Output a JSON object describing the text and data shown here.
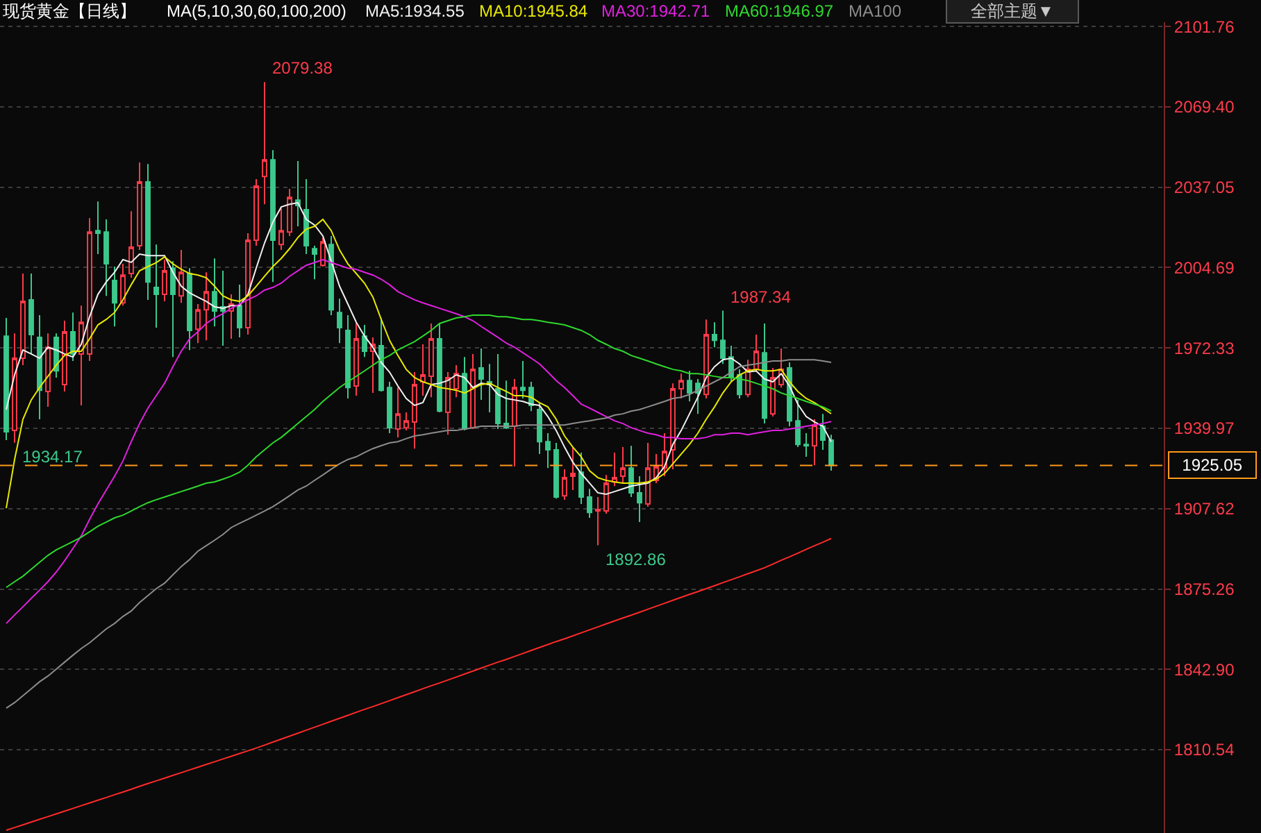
{
  "chart_data": {
    "type": "candlestick",
    "title": "现货黄金【日线】",
    "legend_title": "MA(5,10,30,60,100,200)",
    "legend": "top",
    "grid": "y",
    "tick_labels": "y",
    "categories": [
      null,
      null,
      null,
      null,
      null,
      null,
      null,
      null,
      null,
      null,
      null,
      null,
      null,
      null,
      null,
      null,
      null,
      null,
      null,
      null,
      null,
      null,
      null,
      null,
      null,
      null,
      null,
      null,
      null,
      null,
      null,
      null,
      null,
      null,
      null,
      null,
      null,
      null,
      null,
      null,
      null,
      null,
      null,
      null,
      null,
      null,
      null,
      null,
      null,
      null,
      null,
      null,
      null,
      null,
      null,
      null,
      null,
      null,
      null,
      null,
      null,
      null,
      null,
      null,
      null,
      null,
      null,
      null,
      null,
      null,
      null,
      null,
      null,
      null,
      null,
      null,
      null,
      null,
      null,
      null,
      null,
      null,
      null,
      null,
      null,
      null,
      null,
      null,
      null,
      null,
      null,
      null,
      null,
      null,
      null,
      null,
      null,
      null,
      null,
      null
    ],
    "ohlc": [
      [
        1977.1,
        1984.4,
        1935.2,
        1938.6
      ],
      [
        1939.1,
        1978.2,
        1934.17,
        1968.2
      ],
      [
        1968.2,
        2002.3,
        1965.4,
        1991.1
      ],
      [
        1991.7,
        2002.3,
        1969.9,
        1977.7
      ],
      [
        1976.6,
        1985.5,
        1943.6,
        1955.3
      ],
      [
        1954.8,
        1978.2,
        1948.6,
        1972.6
      ],
      [
        1976.6,
        1978.2,
        1960.4,
        1963.1
      ],
      [
        1957.6,
        1983.3,
        1954.8,
        1978.8
      ],
      [
        1978.8,
        1986.6,
        1967.1,
        1969.9
      ],
      [
        1969.9,
        1989.4,
        1949.2,
        1982.7
      ],
      [
        1969.9,
        2024.6,
        1967.1,
        2019.0
      ],
      [
        2019.6,
        2031.3,
        2010.1,
        2018.5
      ],
      [
        2019.0,
        2024.1,
        1993.3,
        2006.2
      ],
      [
        1999.5,
        2005.1,
        1981.0,
        1990.5
      ],
      [
        1990.5,
        2006.2,
        1989.4,
        2001.7
      ],
      [
        2002.3,
        2027.4,
        2000.6,
        2012.9
      ],
      [
        2013.5,
        2047.0,
        2011.8,
        2039.2
      ],
      [
        2039.2,
        2046.4,
        1991.7,
        1998.9
      ],
      [
        1996.7,
        2014.0,
        1980.5,
        1993.9
      ],
      [
        1993.9,
        2007.9,
        1991.1,
        2003.4
      ],
      [
        2004.5,
        2007.3,
        1968.7,
        1993.9
      ],
      [
        1993.3,
        2011.8,
        1990.5,
        2002.8
      ],
      [
        2002.3,
        2004.5,
        1971.5,
        1979.4
      ],
      [
        1979.9,
        1990.0,
        1974.3,
        1987.7
      ],
      [
        1987.7,
        2002.8,
        1975.4,
        1995.0
      ],
      [
        1995.0,
        2008.4,
        1981.0,
        1987.2
      ],
      [
        1988.9,
        2003.4,
        1973.2,
        1987.2
      ],
      [
        1987.2,
        1993.9,
        1976.0,
        1990.0
      ],
      [
        1989.4,
        1997.8,
        1976.6,
        1980.5
      ],
      [
        1980.5,
        2018.5,
        1977.7,
        2015.7
      ],
      [
        2015.7,
        2040.3,
        2013.5,
        2037.5
      ],
      [
        2041.4,
        2079.38,
        2030.2,
        2048.1
      ],
      [
        2048.1,
        2052.0,
        1998.9,
        2015.7
      ],
      [
        2014.0,
        2028.5,
        2011.8,
        2019.6
      ],
      [
        2019.0,
        2036.4,
        2017.4,
        2033.0
      ],
      [
        2031.9,
        2047.6,
        2021.3,
        2029.7
      ],
      [
        2028.0,
        2040.3,
        2010.1,
        2013.5
      ],
      [
        2012.3,
        2013.5,
        2000.0,
        2010.1
      ],
      [
        2005.6,
        2016.8,
        2005.1,
        2015.1
      ],
      [
        2014.0,
        2017.4,
        1985.5,
        1987.7
      ],
      [
        1986.6,
        1992.2,
        1974.3,
        1980.5
      ],
      [
        1979.4,
        1985.5,
        1952.0,
        1956.4
      ],
      [
        1957.0,
        1982.7,
        1953.1,
        1976.0
      ],
      [
        1977.1,
        1981.6,
        1968.7,
        1971.0
      ],
      [
        1971.0,
        1976.6,
        1954.2,
        1973.8
      ],
      [
        1973.2,
        1984.4,
        1954.8,
        1955.3
      ],
      [
        1956.4,
        1958.7,
        1938.0,
        1940.2
      ],
      [
        1939.7,
        1956.4,
        1936.3,
        1945.8
      ],
      [
        1940.2,
        1946.4,
        1939.1,
        1943.0
      ],
      [
        1942.5,
        1962.6,
        1931.8,
        1957.6
      ],
      [
        1958.7,
        1973.8,
        1953.1,
        1961.5
      ],
      [
        1960.9,
        1982.2,
        1952.5,
        1976.0
      ],
      [
        1976.0,
        1982.2,
        1946.4,
        1946.9
      ],
      [
        1946.4,
        1962.6,
        1937.4,
        1960.4
      ],
      [
        1955.9,
        1965.4,
        1952.5,
        1962.0
      ],
      [
        1962.0,
        1968.7,
        1939.1,
        1939.7
      ],
      [
        1940.2,
        1969.9,
        1939.7,
        1963.7
      ],
      [
        1964.3,
        1972.1,
        1951.4,
        1959.8
      ],
      [
        1958.7,
        1965.9,
        1946.4,
        1957.6
      ],
      [
        1955.9,
        1969.9,
        1939.7,
        1941.9
      ],
      [
        1941.9,
        1959.2,
        1939.7,
        1940.2
      ],
      [
        1940.8,
        1959.8,
        1924.6,
        1956.4
      ],
      [
        1956.4,
        1967.1,
        1952.0,
        1955.3
      ],
      [
        1956.4,
        1958.7,
        1946.9,
        1949.2
      ],
      [
        1947.5,
        1950.3,
        1929.6,
        1934.6
      ],
      [
        1934.6,
        1938.0,
        1924.0,
        1931.3
      ],
      [
        1931.3,
        1934.1,
        1911.7,
        1912.3
      ],
      [
        1912.8,
        1923.5,
        1911.2,
        1920.1
      ],
      [
        1920.7,
        1932.4,
        1915.1,
        1921.8
      ],
      [
        1922.3,
        1930.2,
        1909.5,
        1912.3
      ],
      [
        1912.3,
        1915.6,
        1903.9,
        1906.1
      ],
      [
        1906.7,
        1912.3,
        1892.86,
        1907.3
      ],
      [
        1906.7,
        1921.2,
        1905.6,
        1917.9
      ],
      [
        1918.4,
        1930.2,
        1916.7,
        1920.1
      ],
      [
        1920.7,
        1932.4,
        1917.9,
        1924.0
      ],
      [
        1924.0,
        1932.9,
        1912.3,
        1914.0
      ],
      [
        1914.0,
        1920.7,
        1902.2,
        1910.0
      ],
      [
        1909.5,
        1934.1,
        1908.4,
        1924.0
      ],
      [
        1919.0,
        1929.6,
        1917.9,
        1924.6
      ],
      [
        1924.0,
        1938.0,
        1920.7,
        1930.7
      ],
      [
        1931.3,
        1958.1,
        1923.5,
        1955.9
      ],
      [
        1955.9,
        1962.0,
        1952.0,
        1959.2
      ],
      [
        1959.2,
        1963.1,
        1950.8,
        1954.2
      ],
      [
        1958.1,
        1959.8,
        1945.8,
        1954.2
      ],
      [
        1953.6,
        1983.8,
        1952.0,
        1977.7
      ],
      [
        1977.7,
        1982.7,
        1972.6,
        1975.4
      ],
      [
        1975.4,
        1987.34,
        1965.9,
        1968.2
      ],
      [
        1968.7,
        1973.2,
        1958.7,
        1960.4
      ],
      [
        1961.5,
        1963.7,
        1952.0,
        1953.6
      ],
      [
        1953.6,
        1967.6,
        1952.5,
        1963.7
      ],
      [
        1963.7,
        1977.7,
        1962.6,
        1971.0
      ],
      [
        1970.4,
        1982.2,
        1941.9,
        1944.1
      ],
      [
        1945.8,
        1964.3,
        1944.7,
        1960.4
      ],
      [
        1957.6,
        1972.1,
        1956.4,
        1963.7
      ],
      [
        1964.3,
        1966.5,
        1940.8,
        1943.0
      ],
      [
        1943.0,
        1951.4,
        1932.4,
        1933.5
      ],
      [
        1933.5,
        1938.0,
        1928.5,
        1932.9
      ],
      [
        1932.9,
        1943.6,
        1925.1,
        1941.3
      ],
      [
        1940.8,
        1945.8,
        1931.3,
        1935.2
      ],
      [
        1935.2,
        1937.4,
        1922.9,
        1925.05
      ]
    ],
    "series": [
      {
        "name": "MA5:1934.55",
        "type": "line",
        "color": "#f0f0f0",
        "values": [
          1947.5,
          1961.5,
          1971.5,
          1969.9,
          1968.2,
          1972.6,
          1971.5,
          1969.9,
          1968.7,
          1973.8,
          1984.9,
          1993.9,
          1998.9,
          2002.8,
          2007.9,
          2006.8,
          2010.1,
          2009.5,
          2009.5,
          2009.5,
          2002.8,
          1997.2,
          1994.5,
          1992.8,
          1991.1,
          1988.9,
          1988.3,
          1989.4,
          1989.4,
          1993.9,
          2004.5,
          2014.6,
          2023.0,
          2029.1,
          2030.2,
          2030.8,
          2024.1,
          2021.8,
          2017.4,
          2007.3,
          1997.2,
          1990.0,
          1982.7,
          1977.1,
          1972.6,
          1966.5,
          1962.6,
          1957.0,
          1952.0,
          1949.2,
          1950.3,
          1957.6,
          1958.1,
          1959.2,
          1961.5,
          1960.4,
          1956.4,
          1958.1,
          1957.6,
          1953.6,
          1952.0,
          1951.4,
          1950.8,
          1949.7,
          1949.2,
          1944.7,
          1939.1,
          1932.4,
          1926.3,
          1921.8,
          1917.9,
          1914.0,
          1913.4,
          1914.5,
          1915.6,
          1916.7,
          1917.3,
          1917.9,
          1920.1,
          1924.6,
          1933.5,
          1939.1,
          1945.8,
          1952.5,
          1960.4,
          1964.8,
          1967.6,
          1968.2,
          1965.9,
          1962.6,
          1963.1,
          1959.8,
          1958.7,
          1962.0,
          1957.0,
          1949.7,
          1944.7,
          1942.5,
          1940.8,
          1934.55
        ]
      },
      {
        "name": "MA10:1945.84",
        "type": "line",
        "color": "#e8e800",
        "values": [
          1907.8,
          1927.4,
          1943.6,
          1951.4,
          1956.4,
          1960.9,
          1965.4,
          1969.3,
          1971.0,
          1971.0,
          1976.0,
          1981.6,
          1983.8,
          1986.6,
          1991.7,
          1997.8,
          2003.4,
          2005.1,
          2006.7,
          2009.0,
          2006.2,
          2004.0,
          2002.3,
          2001.7,
          2000.6,
          1997.2,
          1993.3,
          1991.7,
          1991.1,
          1993.3,
          1997.2,
          2001.2,
          2005.1,
          2008.4,
          2012.3,
          2016.8,
          2020.2,
          2021.3,
          2024.1,
          2019.6,
          2011.8,
          2006.2,
          2002.3,
          1998.4,
          1992.8,
          1983.8,
          1975.4,
          1969.3,
          1963.7,
          1960.4,
          1958.7,
          1957.6,
          1956.4,
          1955.9,
          1955.3,
          1954.2,
          1955.9,
          1957.6,
          1958.1,
          1956.4,
          1954.8,
          1953.1,
          1953.1,
          1952.5,
          1950.3,
          1948.6,
          1943.6,
          1936.9,
          1932.4,
          1928.5,
          1922.9,
          1920.1,
          1919.0,
          1918.4,
          1917.9,
          1917.9,
          1917.9,
          1918.4,
          1919.5,
          1921.8,
          1925.7,
          1929.6,
          1933.5,
          1938.0,
          1943.6,
          1948.6,
          1954.2,
          1958.7,
          1961.5,
          1963.1,
          1963.7,
          1963.1,
          1963.1,
          1963.7,
          1958.7,
          1954.8,
          1952.0,
          1950.3,
          1948.1,
          1945.84
        ]
      },
      {
        "name": "MA30:1942.71",
        "type": "line",
        "color": "#e020e0",
        "values": [
          1861.4,
          1864.8,
          1868.1,
          1871.5,
          1874.8,
          1878.2,
          1882.1,
          1886.6,
          1891.6,
          1896.6,
          1903.3,
          1909.5,
          1915.1,
          1920.7,
          1926.8,
          1934.6,
          1941.9,
          1948.1,
          1953.1,
          1958.1,
          1964.8,
          1971.0,
          1976.0,
          1978.8,
          1982.2,
          1984.4,
          1986.1,
          1988.3,
          1990.0,
          1991.7,
          1993.3,
          1995.6,
          1996.7,
          1998.4,
          2001.2,
          2003.4,
          2005.6,
          2006.7,
          2007.9,
          2006.7,
          2005.6,
          2004.5,
          2004.0,
          2002.8,
          2001.7,
          2000.0,
          1997.8,
          1995.0,
          1993.3,
          1991.7,
          1990.5,
          1989.4,
          1988.3,
          1987.2,
          1986.1,
          1984.9,
          1983.3,
          1981.0,
          1978.8,
          1976.6,
          1974.3,
          1972.6,
          1970.4,
          1968.2,
          1965.9,
          1962.6,
          1959.2,
          1956.4,
          1953.1,
          1949.7,
          1948.1,
          1946.4,
          1944.7,
          1943.0,
          1941.9,
          1940.2,
          1939.1,
          1938.0,
          1937.4,
          1936.3,
          1936.3,
          1935.8,
          1935.8,
          1935.8,
          1936.3,
          1937.4,
          1937.4,
          1938.0,
          1938.0,
          1937.4,
          1938.0,
          1938.6,
          1939.1,
          1939.1,
          1939.7,
          1940.2,
          1940.8,
          1941.3,
          1941.9,
          1942.71
        ]
      },
      {
        "name": "MA60:1946.97",
        "type": "line",
        "color": "#2ed82e",
        "values": [
          1875.9,
          1878.2,
          1880.4,
          1883.2,
          1886.0,
          1888.8,
          1891.0,
          1892.7,
          1894.4,
          1896.1,
          1898.3,
          1900.5,
          1902.2,
          1903.9,
          1905.0,
          1906.7,
          1908.4,
          1910.0,
          1911.2,
          1912.3,
          1913.4,
          1914.5,
          1915.6,
          1916.7,
          1917.9,
          1918.4,
          1919.5,
          1920.7,
          1922.3,
          1925.1,
          1928.5,
          1931.3,
          1934.1,
          1936.3,
          1939.1,
          1941.9,
          1944.7,
          1947.5,
          1950.8,
          1953.6,
          1956.4,
          1958.7,
          1960.9,
          1963.1,
          1965.4,
          1967.6,
          1969.3,
          1971.5,
          1973.2,
          1974.9,
          1977.1,
          1979.4,
          1982.2,
          1983.3,
          1984.4,
          1984.9,
          1985.5,
          1985.5,
          1985.5,
          1984.9,
          1984.9,
          1984.4,
          1983.8,
          1983.8,
          1983.3,
          1982.7,
          1982.2,
          1981.6,
          1980.5,
          1979.4,
          1977.7,
          1975.4,
          1973.8,
          1972.1,
          1971.0,
          1969.3,
          1968.2,
          1967.1,
          1965.9,
          1964.8,
          1963.7,
          1963.1,
          1962.0,
          1962.0,
          1961.5,
          1960.9,
          1960.4,
          1960.4,
          1959.8,
          1959.2,
          1958.1,
          1957.0,
          1955.9,
          1954.2,
          1953.1,
          1952.0,
          1950.8,
          1949.7,
          1948.6,
          1946.97
        ]
      },
      {
        "name": "MA100",
        "type": "line",
        "color": "#8c8c8c",
        "values": [
          1827.3,
          1829.5,
          1832.3,
          1835.1,
          1837.9,
          1840.2,
          1843.0,
          1845.8,
          1848.6,
          1851.3,
          1853.6,
          1856.4,
          1859.2,
          1861.4,
          1864.2,
          1866.4,
          1869.8,
          1872.6,
          1875.4,
          1877.6,
          1881.0,
          1884.3,
          1887.1,
          1890.5,
          1892.7,
          1894.9,
          1897.2,
          1900.0,
          1901.7,
          1903.3,
          1905.0,
          1906.7,
          1908.4,
          1910.6,
          1912.8,
          1915.1,
          1916.7,
          1919.0,
          1921.2,
          1923.5,
          1925.7,
          1927.4,
          1928.5,
          1930.2,
          1931.8,
          1933.0,
          1934.1,
          1934.6,
          1935.8,
          1936.9,
          1937.4,
          1938.0,
          1938.6,
          1939.1,
          1939.1,
          1939.7,
          1940.2,
          1940.8,
          1940.8,
          1940.8,
          1940.8,
          1940.8,
          1941.3,
          1941.3,
          1941.3,
          1941.3,
          1941.3,
          1941.3,
          1941.9,
          1942.5,
          1943.0,
          1943.6,
          1944.1,
          1945.3,
          1945.8,
          1946.9,
          1947.5,
          1948.6,
          1949.7,
          1950.8,
          1952.0,
          1952.5,
          1953.6,
          1955.3,
          1957.0,
          1958.7,
          1960.4,
          1962.6,
          1964.8,
          1965.4,
          1965.9,
          1966.5,
          1967.1,
          1967.1,
          1967.6,
          1967.6,
          1967.6,
          1967.6,
          1967.1,
          1966.5
        ]
      },
      {
        "type": "line",
        "color": "#ff2a2a",
        "values": [
          1778.1,
          1779.2,
          1780.3,
          1781.4,
          1782.5,
          1783.6,
          1784.7,
          1785.8,
          1786.9,
          1788.0,
          1789.1,
          1790.2,
          1791.3,
          1792.4,
          1793.5,
          1794.6,
          1795.8,
          1796.9,
          1798.0,
          1799.1,
          1800.2,
          1801.3,
          1802.4,
          1803.5,
          1804.6,
          1805.7,
          1806.8,
          1807.9,
          1809.0,
          1810.1,
          1811.2,
          1812.4,
          1813.6,
          1814.8,
          1816.0,
          1817.2,
          1818.4,
          1819.6,
          1820.8,
          1822.0,
          1823.2,
          1824.4,
          1825.6,
          1826.8,
          1827.9,
          1829.1,
          1830.3,
          1831.5,
          1832.7,
          1833.9,
          1835.1,
          1836.3,
          1837.4,
          1838.6,
          1839.8,
          1841.0,
          1842.2,
          1843.4,
          1844.6,
          1845.8,
          1846.9,
          1848.1,
          1849.3,
          1850.5,
          1851.7,
          1852.9,
          1854.1,
          1855.2,
          1856.4,
          1857.6,
          1858.8,
          1860.0,
          1861.2,
          1862.4,
          1863.6,
          1864.7,
          1865.9,
          1867.1,
          1868.3,
          1869.5,
          1870.7,
          1871.9,
          1873.1,
          1874.2,
          1875.4,
          1876.6,
          1877.8,
          1879.0,
          1880.2,
          1881.4,
          1882.6,
          1883.8,
          1885.3,
          1886.8,
          1888.2,
          1889.7,
          1891.2,
          1892.7,
          1894.1,
          1895.6
        ]
      }
    ],
    "ylim": [
      1777,
      2103.5
    ],
    "yticks": [
      2101.76,
      {
        "value": 2069.4,
        "label": "2069.40"
      },
      2037.05,
      2004.69,
      1972.33,
      1939.97,
      1907.62,
      1875.26,
      {
        "value": 1842.9,
        "label": "1842.90"
      },
      1810.54
    ],
    "ref_lines": [
      {
        "axis": "y",
        "value": 1925.05,
        "label": "1925.05",
        "color": "#ff9a1a",
        "line_style": "dashed"
      }
    ],
    "annotations": [
      "2079.38",
      "1987.34",
      "1934.17",
      "1892.86",
      "全部主题▼"
    ]
  }
}
